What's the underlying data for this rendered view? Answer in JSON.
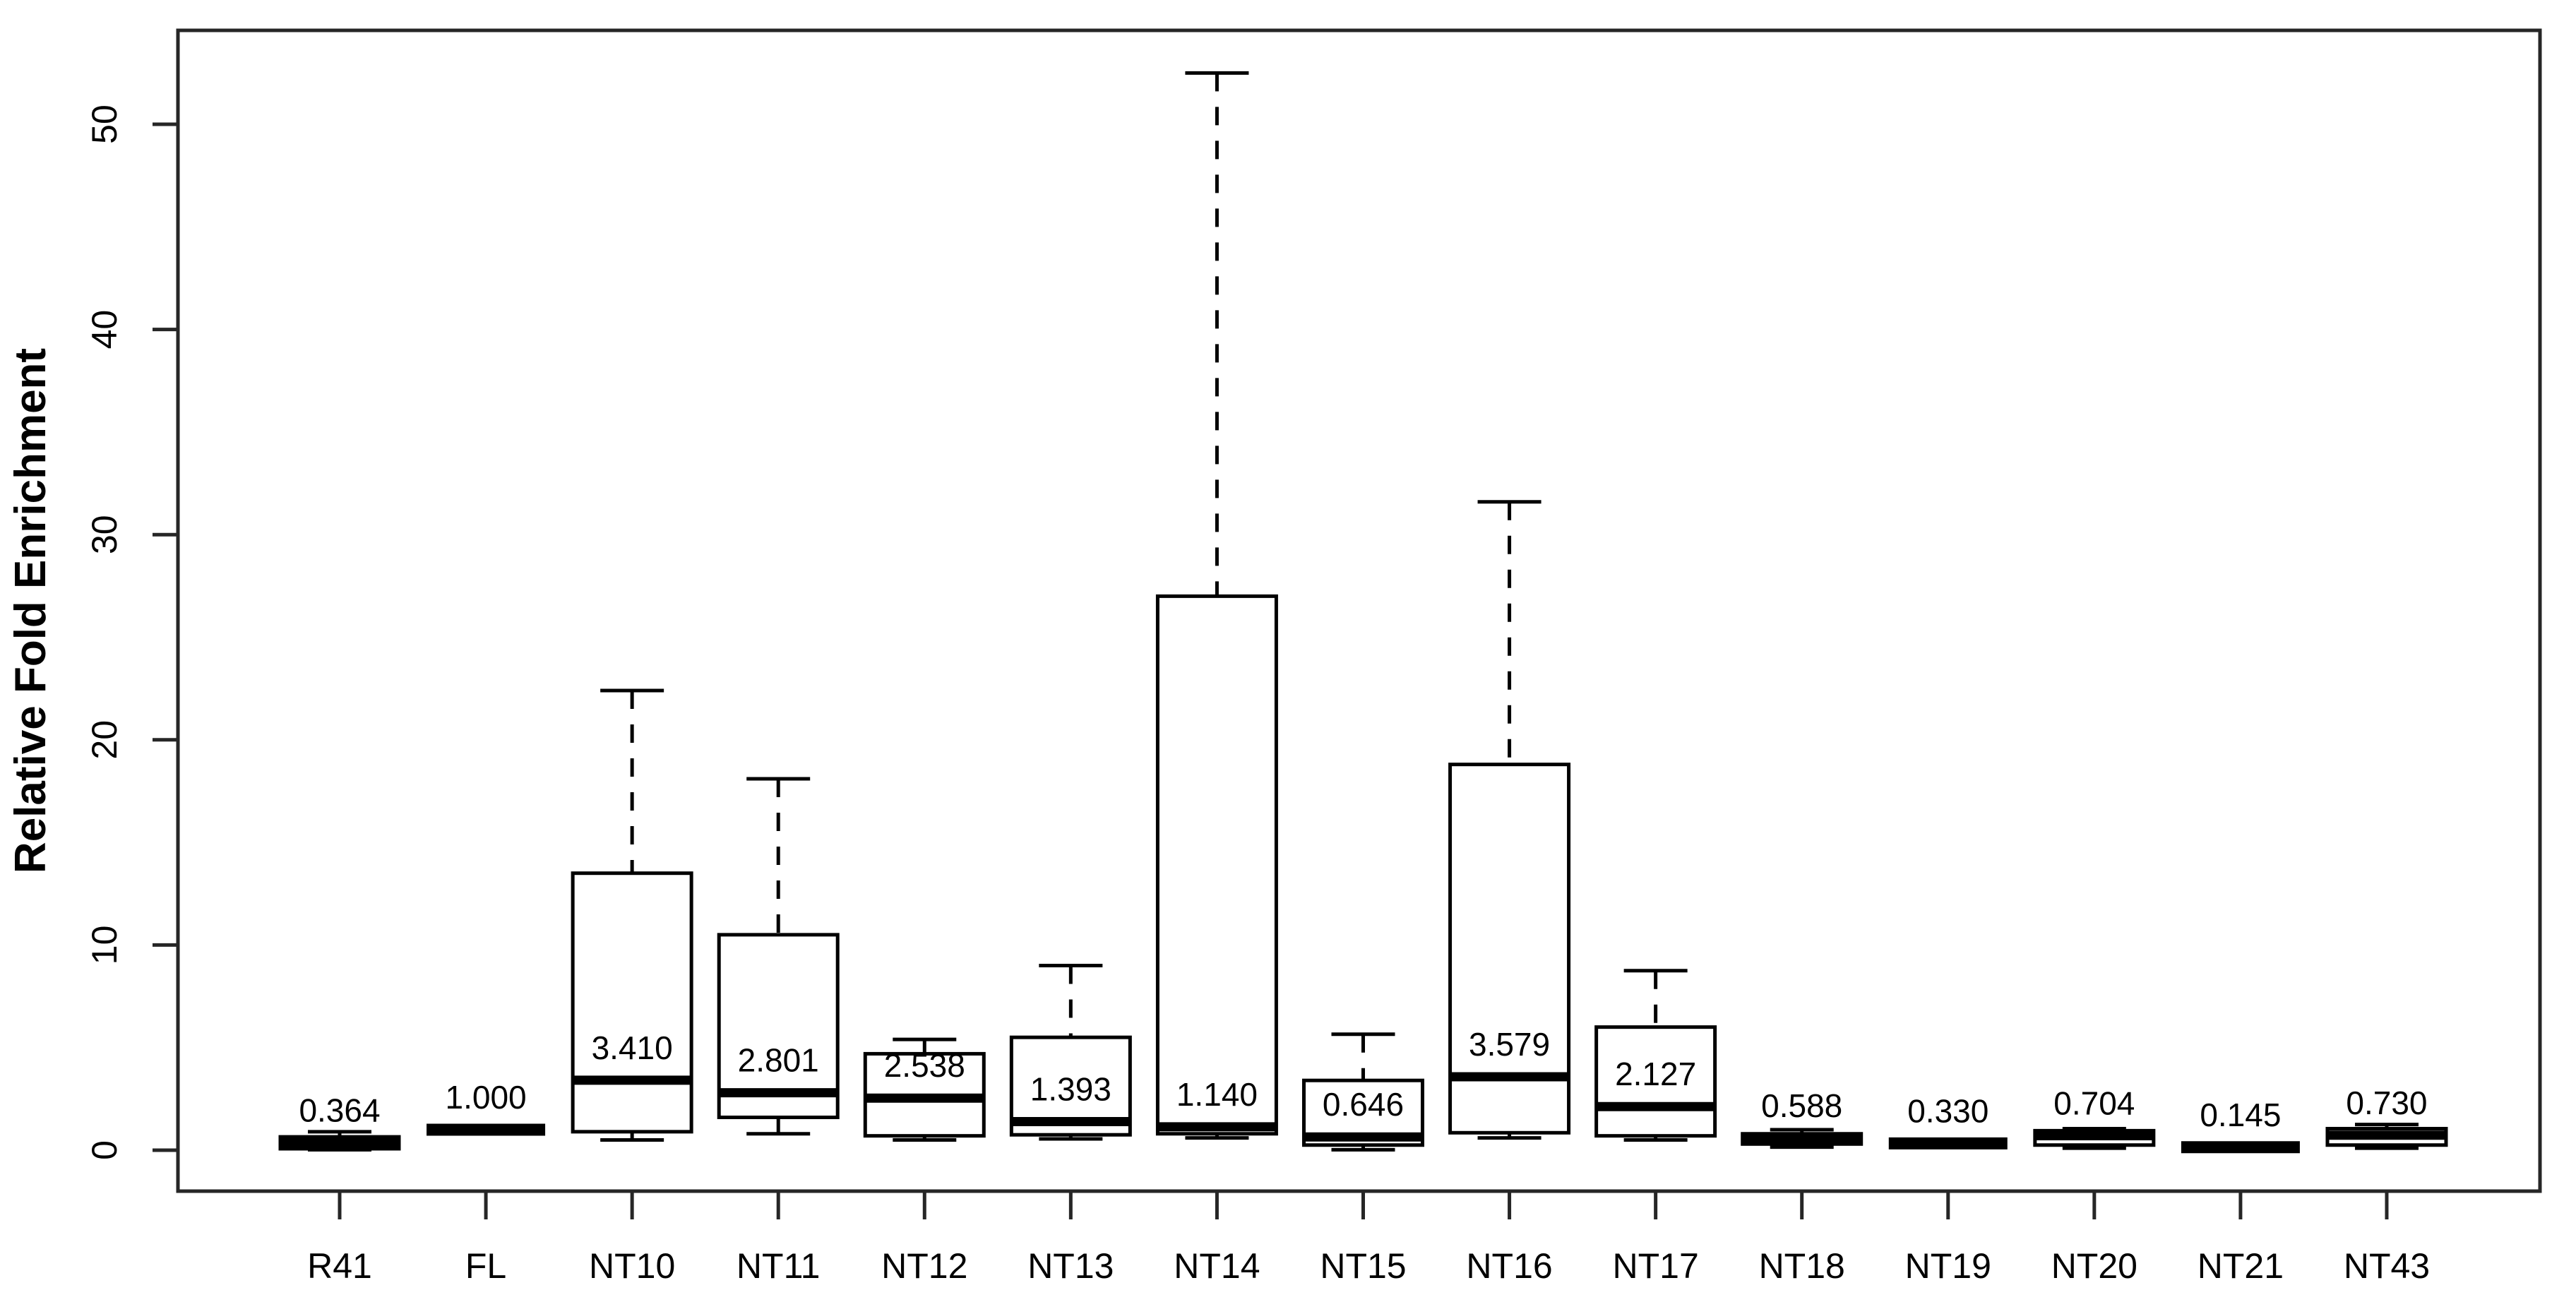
{
  "figure": {
    "background": "#ffffff",
    "axis_color": "#262626",
    "box_color": "#000000",
    "text_color": "#000000"
  },
  "chart_data": {
    "type": "boxplot",
    "title": "",
    "xlabel": "",
    "ylabel": "Relative Fold Enrichment",
    "ylim": [
      0,
      52.5
    ],
    "yticks": [
      0,
      10,
      20,
      30,
      40,
      50
    ],
    "ytick_labels": [
      "0",
      "10",
      "20",
      "30",
      "40",
      "50"
    ],
    "grid": false,
    "legend": "none",
    "categories": [
      "R41",
      "FL",
      "NT10",
      "NT11",
      "NT12",
      "NT13",
      "NT14",
      "NT15",
      "NT16",
      "NT17",
      "NT18",
      "NT19",
      "NT20",
      "NT21",
      "NT43"
    ],
    "boxes": [
      {
        "label": "R41",
        "median": 0.364,
        "median_label": "0.364",
        "q1": 0.07,
        "q3": 0.65,
        "whisker_low": 0.02,
        "whisker_high": 0.9,
        "flat": false
      },
      {
        "label": "FL",
        "median": 1.0,
        "median_label": "1.000",
        "q1": 1.0,
        "q3": 1.0,
        "whisker_low": 1.0,
        "whisker_high": 1.0,
        "flat": true
      },
      {
        "label": "NT10",
        "median": 3.41,
        "median_label": "3.410",
        "q1": 0.9,
        "q3": 13.5,
        "whisker_low": 0.5,
        "whisker_high": 22.4,
        "flat": false
      },
      {
        "label": "NT11",
        "median": 2.801,
        "median_label": "2.801",
        "q1": 1.6,
        "q3": 10.5,
        "whisker_low": 0.8,
        "whisker_high": 18.1,
        "flat": false
      },
      {
        "label": "NT12",
        "median": 2.538,
        "median_label": "2.538",
        "q1": 0.7,
        "q3": 4.7,
        "whisker_low": 0.5,
        "whisker_high": 5.4,
        "flat": false
      },
      {
        "label": "NT13",
        "median": 1.393,
        "median_label": "1.393",
        "q1": 0.75,
        "q3": 5.5,
        "whisker_low": 0.55,
        "whisker_high": 9.0,
        "flat": false
      },
      {
        "label": "NT14",
        "median": 1.14,
        "median_label": "1.140",
        "q1": 0.8,
        "q3": 27.0,
        "whisker_low": 0.6,
        "whisker_high": 52.5,
        "flat": false
      },
      {
        "label": "NT15",
        "median": 0.646,
        "median_label": "0.646",
        "q1": 0.25,
        "q3": 3.4,
        "whisker_low": 0.02,
        "whisker_high": 5.65,
        "flat": false
      },
      {
        "label": "NT16",
        "median": 3.579,
        "median_label": "3.579",
        "q1": 0.85,
        "q3": 18.8,
        "whisker_low": 0.6,
        "whisker_high": 31.6,
        "flat": false
      },
      {
        "label": "NT17",
        "median": 2.127,
        "median_label": "2.127",
        "q1": 0.7,
        "q3": 6.0,
        "whisker_low": 0.5,
        "whisker_high": 8.75,
        "flat": false
      },
      {
        "label": "NT18",
        "median": 0.588,
        "median_label": "0.588",
        "q1": 0.3,
        "q3": 0.8,
        "whisker_low": 0.15,
        "whisker_high": 1.0,
        "flat": false
      },
      {
        "label": "NT19",
        "median": 0.33,
        "median_label": "0.330",
        "q1": 0.33,
        "q3": 0.33,
        "whisker_low": 0.33,
        "whisker_high": 0.33,
        "flat": true
      },
      {
        "label": "NT20",
        "median": 0.704,
        "median_label": "0.704",
        "q1": 0.25,
        "q3": 0.95,
        "whisker_low": 0.1,
        "whisker_high": 1.05,
        "flat": false
      },
      {
        "label": "NT21",
        "median": 0.145,
        "median_label": "0.145",
        "q1": 0.145,
        "q3": 0.145,
        "whisker_low": 0.145,
        "whisker_high": 0.145,
        "flat": true
      },
      {
        "label": "NT43",
        "median": 0.73,
        "median_label": "0.730",
        "q1": 0.25,
        "q3": 1.05,
        "whisker_low": 0.1,
        "whisker_high": 1.25,
        "flat": false
      }
    ]
  }
}
